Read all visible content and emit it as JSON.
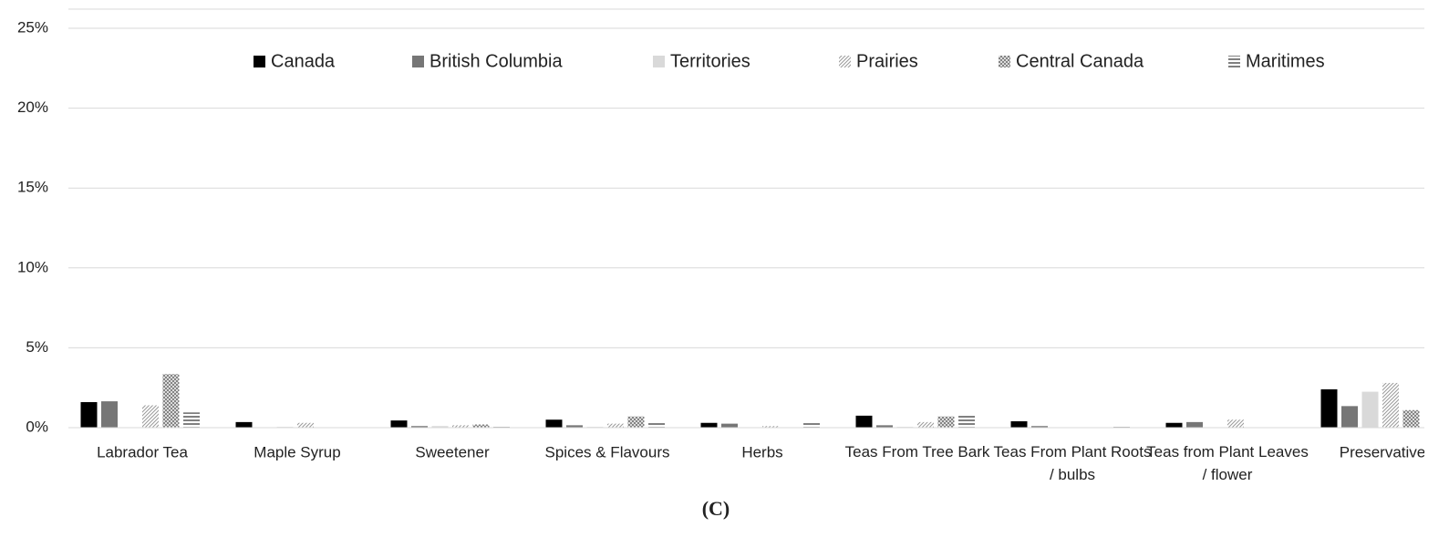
{
  "chart_data": {
    "type": "bar",
    "caption": "(C)",
    "categories": [
      "Labrador Tea",
      "Maple Syrup",
      "Sweetener",
      "Spices & Flavours",
      "Herbs",
      "Teas From Tree Bark",
      "Teas From Plant Roots / bulbs",
      "Teas from Plant Leaves / flower",
      "Preservative"
    ],
    "series": [
      {
        "name": "Canada",
        "color": "#000000",
        "pattern": "solid",
        "values": [
          1.6,
          0.35,
          0.45,
          0.5,
          0.3,
          0.75,
          0.4,
          0.3,
          2.4
        ]
      },
      {
        "name": "British Columbia",
        "color": "#767676",
        "pattern": "solid",
        "values": [
          1.65,
          0,
          0.1,
          0.15,
          0.25,
          0.15,
          0.1,
          0.35,
          1.35
        ]
      },
      {
        "name": "Territories",
        "color": "#d9d9d9",
        "pattern": "solid",
        "values": [
          0,
          0.05,
          0.1,
          0.05,
          0,
          0.05,
          0,
          0,
          2.25
        ]
      },
      {
        "name": "Prairies",
        "color": "#9a9a9a",
        "pattern": "diagonal",
        "values": [
          1.4,
          0.3,
          0.15,
          0.25,
          0.1,
          0.35,
          0,
          0.5,
          2.8
        ]
      },
      {
        "name": "Central Canada",
        "color": "#7a7a7a",
        "pattern": "crosshatch",
        "values": [
          3.35,
          0,
          0.2,
          0.7,
          0,
          0.7,
          0,
          0,
          1.1
        ]
      },
      {
        "name": "Maritimes",
        "color": "#555555",
        "pattern": "horizontal",
        "values": [
          0.95,
          0,
          0.1,
          0.35,
          0.35,
          0.8,
          0.1,
          0,
          null
        ]
      }
    ],
    "ylim": [
      0,
      25
    ],
    "yticks": [
      {
        "value": 0,
        "label": "0%"
      },
      {
        "value": 5,
        "label": "5%"
      },
      {
        "value": 10,
        "label": "10%"
      },
      {
        "value": 15,
        "label": "15%"
      },
      {
        "value": 20,
        "label": "20%"
      },
      {
        "value": 25,
        "label": "25%"
      }
    ],
    "grid": true,
    "legend": "top"
  }
}
